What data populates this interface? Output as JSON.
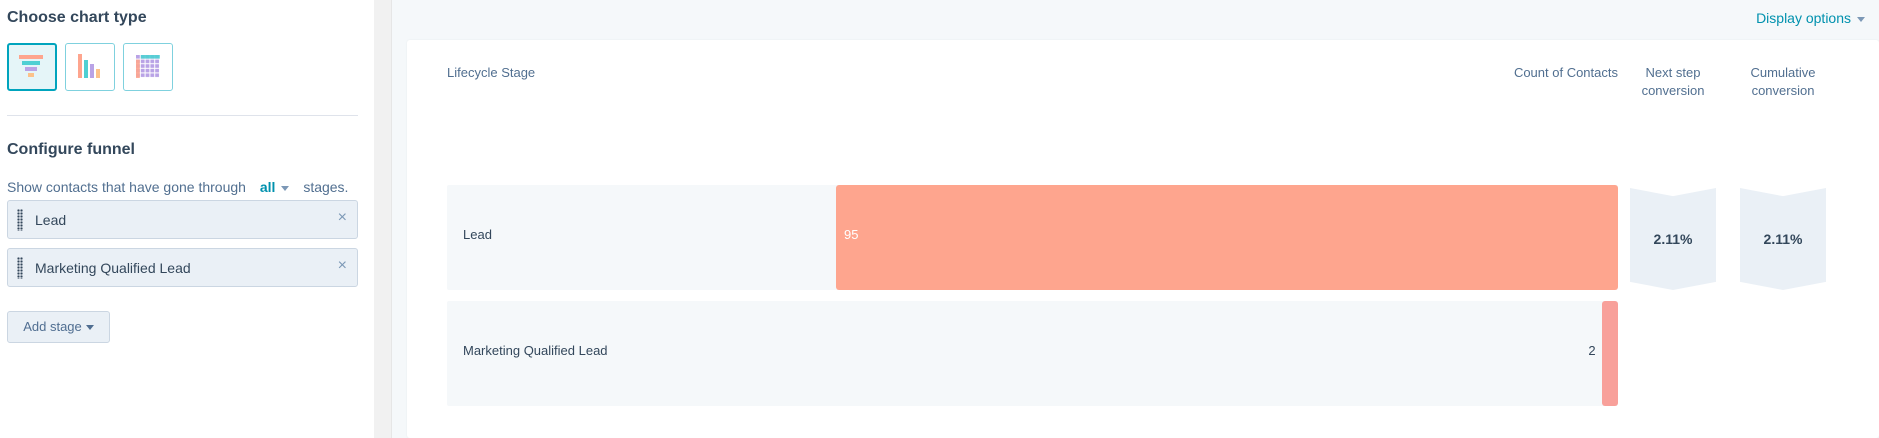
{
  "sidebar": {
    "chart_type_title": "Choose chart type",
    "chart_types": [
      {
        "icon": "funnel-chart-icon",
        "selected": true
      },
      {
        "icon": "bar-chart-icon",
        "selected": false
      },
      {
        "icon": "table-grid-icon",
        "selected": false
      }
    ],
    "configure_title": "Configure funnel",
    "filter_prefix": "Show contacts that have gone through",
    "filter_value": "all",
    "filter_suffix": "stages.",
    "stages": [
      {
        "label": "Lead",
        "remove": "×"
      },
      {
        "label": "Marketing Qualified Lead",
        "remove": "×"
      }
    ],
    "add_stage": "Add stage"
  },
  "toolbar": {
    "display_options": "Display options"
  },
  "table": {
    "headers": {
      "stage": "Lifecycle Stage",
      "count": "Count of Contacts",
      "next": "Next step conversion",
      "cumulative": "Cumulative conversion"
    }
  },
  "chart_data": {
    "type": "bar",
    "orientation": "horizontal funnel",
    "categories": [
      "Lead",
      "Marketing Qualified Lead"
    ],
    "values": [
      95,
      2
    ],
    "value_labels": [
      "95",
      "2"
    ],
    "next_step_conversion": [
      "2.11%"
    ],
    "cumulative_conversion": [
      "2.11%"
    ],
    "colors": [
      "#fea58e",
      "#f8a09a"
    ]
  }
}
